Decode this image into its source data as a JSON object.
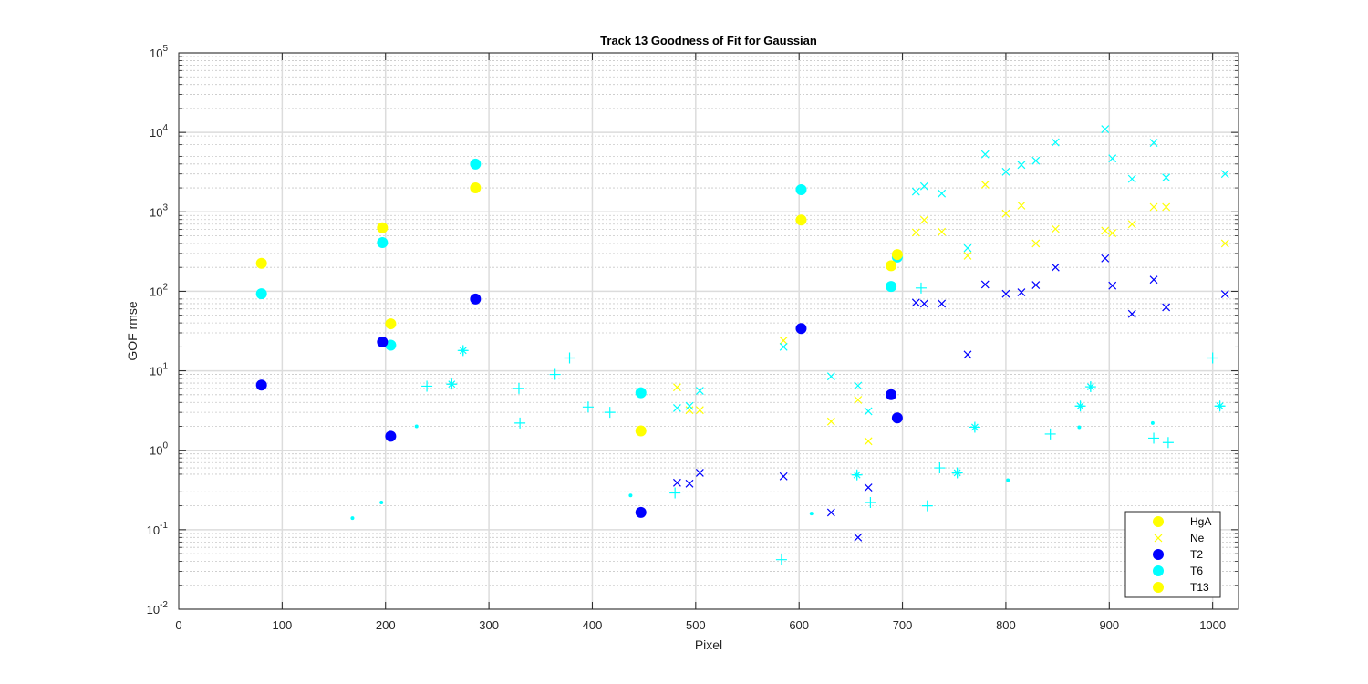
{
  "chart_data": {
    "type": "scatter",
    "title": "Track 13  Goodness of Fit for Gaussian",
    "xlabel": "Pixel",
    "ylabel": "GOF rmse",
    "xlim": [
      0,
      1025
    ],
    "ylim": [
      0.01,
      100000
    ],
    "yscale": "log",
    "x_ticks": [
      "0",
      "100",
      "200",
      "300",
      "400",
      "500",
      "600",
      "700",
      "800",
      "900",
      "1000"
    ],
    "y_tick_labels": [
      {
        "base": "10",
        "exp": "-2"
      },
      {
        "base": "10",
        "exp": "-1"
      },
      {
        "base": "10",
        "exp": "0"
      },
      {
        "base": "10",
        "exp": "1"
      },
      {
        "base": "10",
        "exp": "2"
      },
      {
        "base": "10",
        "exp": "3"
      },
      {
        "base": "10",
        "exp": "4"
      },
      {
        "base": "10",
        "exp": "5"
      }
    ],
    "grid": true,
    "legend_position": "bottom-right",
    "legend": [
      {
        "label": "HgA",
        "marker": "circle",
        "color": "#ffff00"
      },
      {
        "label": "Ne",
        "marker": "x",
        "color": "#ffff00"
      },
      {
        "label": "T2",
        "marker": "circle",
        "color": "#0000ff"
      },
      {
        "label": "T6",
        "marker": "circle",
        "color": "#00ffff"
      },
      {
        "label": "T13",
        "marker": "circle",
        "color": "#ffff00"
      }
    ],
    "series": [
      {
        "name": "T6",
        "marker": "circle",
        "color": "#00ffff",
        "points": [
          [
            80,
            93
          ],
          [
            197,
            410
          ],
          [
            205,
            21
          ],
          [
            287,
            4000
          ],
          [
            447,
            5.3
          ],
          [
            602,
            1900
          ],
          [
            689,
            115
          ],
          [
            695,
            270
          ]
        ]
      },
      {
        "name": "T2",
        "marker": "circle",
        "color": "#0000ff",
        "points": [
          [
            80,
            6.6
          ],
          [
            197,
            23
          ],
          [
            205,
            1.5
          ],
          [
            287,
            80
          ],
          [
            447,
            0.165
          ],
          [
            602,
            34
          ],
          [
            689,
            5.0
          ],
          [
            695,
            2.55
          ]
        ]
      },
      {
        "name": "T13",
        "marker": "circle",
        "color": "#ffff00",
        "points": [
          [
            80,
            225
          ],
          [
            197,
            630
          ],
          [
            205,
            39
          ],
          [
            287,
            2000
          ],
          [
            447,
            1.75
          ],
          [
            602,
            790
          ],
          [
            689,
            210
          ],
          [
            695,
            290
          ]
        ]
      },
      {
        "name": "Ne",
        "marker": "x",
        "color": "#ffff00",
        "points": [
          [
            482,
            6.2
          ],
          [
            494,
            3.2
          ],
          [
            504,
            3.2
          ],
          [
            585,
            24
          ],
          [
            631,
            2.3
          ],
          [
            657,
            4.3
          ],
          [
            667,
            1.3
          ],
          [
            713,
            550
          ],
          [
            721,
            790
          ],
          [
            738,
            560
          ],
          [
            763,
            280
          ],
          [
            780,
            2200
          ],
          [
            800,
            950
          ],
          [
            815,
            1200
          ],
          [
            829,
            400
          ],
          [
            848,
            610
          ],
          [
            896,
            580
          ],
          [
            903,
            540
          ],
          [
            922,
            700
          ],
          [
            943,
            1150
          ],
          [
            955,
            1150
          ],
          [
            1012,
            400
          ]
        ]
      },
      {
        "name": "blue x",
        "marker": "x",
        "color": "#0000ff",
        "points": [
          [
            482,
            0.39
          ],
          [
            494,
            0.38
          ],
          [
            504,
            0.52
          ],
          [
            585,
            0.47
          ],
          [
            631,
            0.165
          ],
          [
            657,
            0.08
          ],
          [
            667,
            0.34
          ],
          [
            713,
            72
          ],
          [
            721,
            70
          ],
          [
            738,
            70
          ],
          [
            763,
            16
          ],
          [
            780,
            122
          ],
          [
            800,
            93
          ],
          [
            815,
            97
          ],
          [
            829,
            120
          ],
          [
            848,
            200
          ],
          [
            896,
            260
          ],
          [
            903,
            118
          ],
          [
            922,
            52
          ],
          [
            943,
            140
          ],
          [
            955,
            63
          ],
          [
            1012,
            92
          ]
        ]
      },
      {
        "name": "cyan x",
        "marker": "x",
        "color": "#00ffff",
        "points": [
          [
            482,
            3.4
          ],
          [
            494,
            3.6
          ],
          [
            504,
            5.6
          ],
          [
            585,
            20
          ],
          [
            631,
            8.5
          ],
          [
            657,
            6.5
          ],
          [
            667,
            3.1
          ],
          [
            713,
            1800
          ],
          [
            721,
            2100
          ],
          [
            738,
            1700
          ],
          [
            763,
            350
          ],
          [
            780,
            5300
          ],
          [
            800,
            3200
          ],
          [
            815,
            3900
          ],
          [
            829,
            4400
          ],
          [
            848,
            7500
          ],
          [
            896,
            11000
          ],
          [
            903,
            4700
          ],
          [
            922,
            2600
          ],
          [
            943,
            7400
          ],
          [
            955,
            2700
          ],
          [
            1012,
            3000
          ]
        ]
      },
      {
        "name": "cyan plus",
        "marker": "plus",
        "color": "#00ffff",
        "points": [
          [
            240,
            6.4
          ],
          [
            264,
            6.8
          ],
          [
            275,
            18
          ],
          [
            329,
            6.0
          ],
          [
            330,
            2.2
          ],
          [
            364,
            9.0
          ],
          [
            378,
            14.5
          ],
          [
            396,
            3.5
          ],
          [
            417,
            3.0
          ],
          [
            480,
            0.29
          ],
          [
            583,
            0.042
          ],
          [
            656,
            0.49
          ],
          [
            669,
            0.22
          ],
          [
            718,
            110
          ],
          [
            724,
            0.2
          ],
          [
            736,
            0.6
          ],
          [
            753,
            0.52
          ],
          [
            770,
            1.95
          ],
          [
            843,
            1.6
          ],
          [
            872,
            3.6
          ],
          [
            882,
            6.3
          ],
          [
            943,
            1.42
          ],
          [
            957,
            1.25
          ],
          [
            1000,
            14.5
          ],
          [
            1007,
            3.6
          ]
        ]
      },
      {
        "name": "cyan asterisk",
        "marker": "asterisk",
        "color": "#00ffff",
        "points": [
          [
            264,
            6.8
          ],
          [
            275,
            18
          ],
          [
            656,
            0.49
          ],
          [
            753,
            0.52
          ],
          [
            770,
            1.95
          ],
          [
            872,
            3.6
          ],
          [
            882,
            6.3
          ],
          [
            1007,
            3.6
          ]
        ]
      },
      {
        "name": "cyan dot",
        "marker": "dot",
        "color": "#00ffff",
        "points": [
          [
            168,
            0.14
          ],
          [
            196,
            0.22
          ],
          [
            230,
            2.0
          ],
          [
            437,
            0.27
          ],
          [
            612,
            0.16
          ],
          [
            802,
            0.42
          ],
          [
            871,
            1.95
          ],
          [
            942,
            2.2
          ]
        ]
      }
    ]
  }
}
